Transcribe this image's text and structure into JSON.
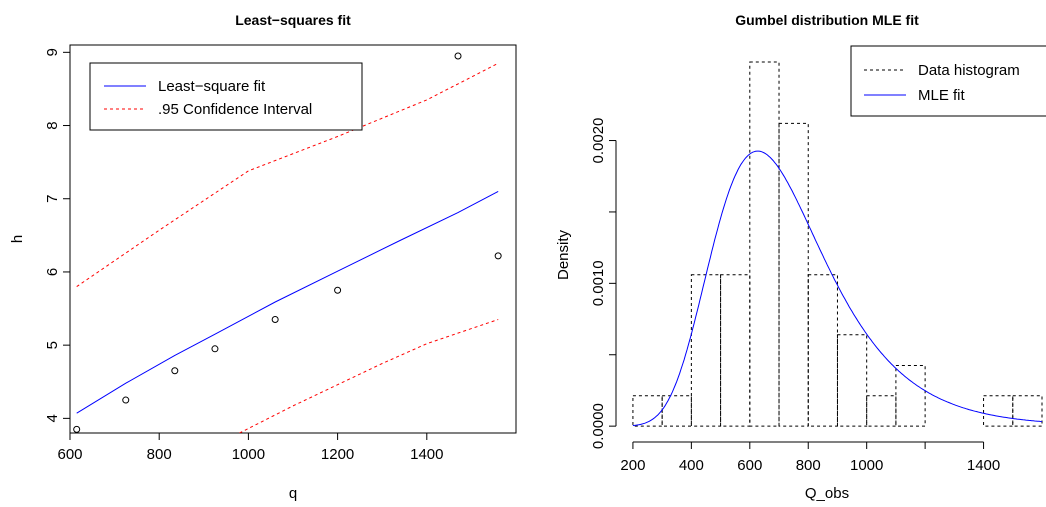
{
  "colors": {
    "fit": "#0000ff",
    "ci": "#ff0000",
    "hist": "#000000",
    "points": "#000000"
  },
  "chart_data": [
    {
      "type": "scatter",
      "title": "Least−squares fit",
      "xlabel": "q",
      "ylabel": "h",
      "xlim": [
        600,
        1600
      ],
      "ylim": [
        3.8,
        9.1
      ],
      "xticks": [
        600,
        800,
        1000,
        1200,
        1400
      ],
      "yticks": [
        4,
        5,
        6,
        7,
        8,
        9
      ],
      "legend": {
        "placement": "top-left",
        "entries": [
          "Least−square fit",
          ".95 Confidence Interval"
        ]
      },
      "points": {
        "x": [
          615,
          725,
          835,
          925,
          1060,
          1200,
          1470,
          1560
        ],
        "y": [
          3.85,
          4.25,
          4.65,
          4.95,
          5.35,
          5.75,
          8.95,
          6.22
        ]
      },
      "series": [
        {
          "name": "Least−square fit",
          "style": "solid",
          "color": "#0000ff",
          "x": [
            615,
            725,
            835,
            925,
            1060,
            1200,
            1340,
            1470,
            1560
          ],
          "y": [
            4.07,
            4.48,
            4.86,
            5.15,
            5.59,
            6.01,
            6.43,
            6.81,
            7.1
          ]
        },
        {
          "name": ".95 Confidence Interval",
          "style": "dashed",
          "color": "#ff0000",
          "x": [
            615,
            800,
            1000,
            1200,
            1400,
            1560
          ],
          "y": [
            5.8,
            6.57,
            7.38,
            7.85,
            8.35,
            8.85
          ]
        },
        {
          "name": ".95 Confidence Interval",
          "style": "dashed",
          "color": "#ff0000",
          "x": [
            980,
            1100,
            1200,
            1300,
            1400,
            1560
          ],
          "y": [
            3.8,
            4.17,
            4.46,
            4.75,
            5.02,
            5.35
          ]
        }
      ]
    },
    {
      "type": "bar",
      "title": "Gumbel distribution MLE fit",
      "xlabel": "Q_obs",
      "ylabel": "Density",
      "xlim": [
        190,
        1600
      ],
      "ylim": [
        -2e-05,
        0.00255
      ],
      "xticks": [
        200,
        400,
        600,
        800,
        1000,
        1400
      ],
      "yticks": [
        0.0,
        0.001,
        0.002
      ],
      "yticklabels": [
        "0.0000",
        "0.0010",
        "0.0020"
      ],
      "legend": {
        "placement": "top-right",
        "entries": [
          "Data histogram",
          "MLE fit"
        ]
      },
      "bins": [
        {
          "x0": 200,
          "x1": 300,
          "density": 0.000213
        },
        {
          "x0": 300,
          "x1": 400,
          "density": 0.000213
        },
        {
          "x0": 400,
          "x1": 500,
          "density": 0.00106
        },
        {
          "x0": 500,
          "x1": 600,
          "density": 0.00106
        },
        {
          "x0": 600,
          "x1": 700,
          "density": 0.00255
        },
        {
          "x0": 700,
          "x1": 800,
          "density": 0.00212
        },
        {
          "x0": 800,
          "x1": 900,
          "density": 0.00106
        },
        {
          "x0": 900,
          "x1": 1000,
          "density": 0.00064
        },
        {
          "x0": 1000,
          "x1": 1100,
          "density": 0.000213
        },
        {
          "x0": 1100,
          "x1": 1200,
          "density": 0.000425
        },
        {
          "x0": 1200,
          "x1": 1300,
          "density": 0.0
        },
        {
          "x0": 1300,
          "x1": 1400,
          "density": 0.0
        },
        {
          "x0": 1400,
          "x1": 1500,
          "density": 0.000213
        },
        {
          "x0": 1500,
          "x1": 1600,
          "density": 0.000213
        }
      ],
      "fit": {
        "name": "MLE fit",
        "distribution": "Gumbel",
        "location": 627,
        "scale": 191
      }
    }
  ]
}
